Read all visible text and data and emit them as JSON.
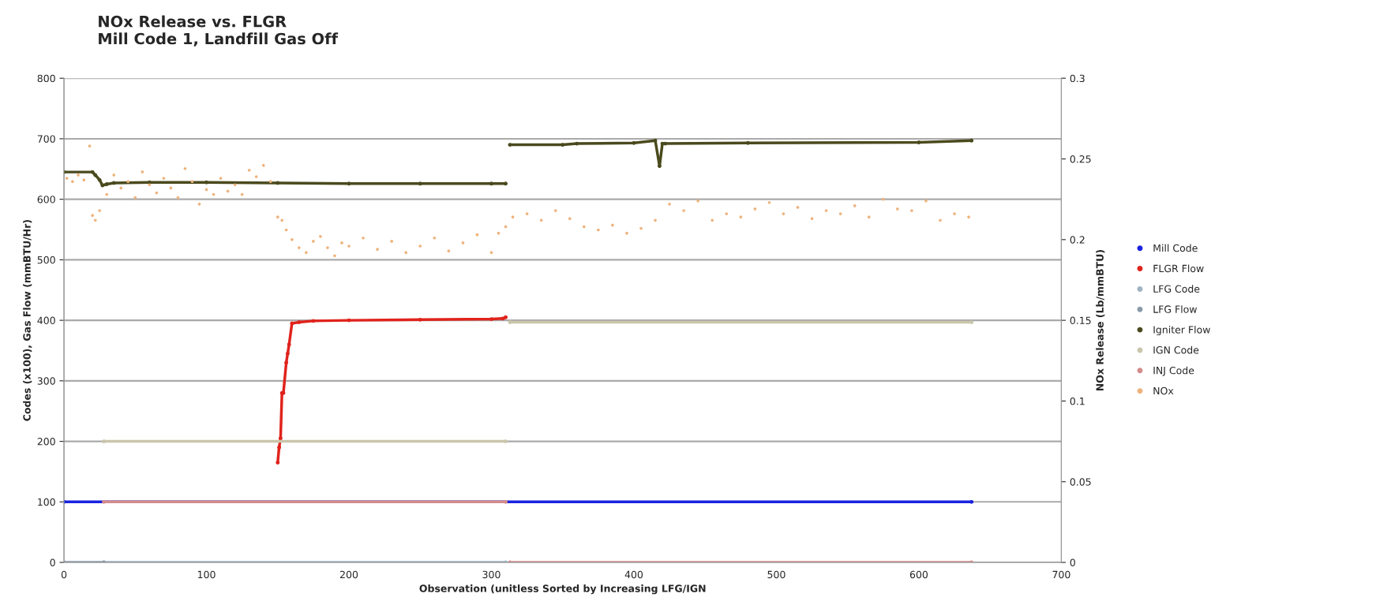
{
  "chart_data": {
    "type": "scatter",
    "title": "NOx Release vs. FLGR\nMill Code 1, Landfill Gas Off",
    "xlabel": "Observation (unitless Sorted by Increasing LFG/IGN",
    "ylabel": "Codes (x100), Gas Flow (mmBTU/Hr)",
    "y2label": "NOx Release (Lb/mmBTU)",
    "xlim": [
      0,
      700
    ],
    "xticks": [
      0,
      100,
      200,
      300,
      400,
      500,
      600,
      700
    ],
    "ylim": [
      0,
      800
    ],
    "yticks": [
      0,
      100,
      200,
      300,
      400,
      500,
      600,
      700,
      800
    ],
    "y2lim": [
      0,
      0.3
    ],
    "y2ticks": [
      0,
      0.05,
      0.1,
      0.15,
      0.2,
      0.25,
      0.3
    ],
    "grid": "y",
    "legend": "right",
    "marker": "circle",
    "series": [
      {
        "name": "Mill Code",
        "type": "line",
        "color": "#1a22e0",
        "x": [
          0,
          637
        ],
        "values": [
          100,
          100
        ]
      },
      {
        "name": "FLGR Flow",
        "type": "line",
        "color": "#e0231c",
        "x": [
          150,
          151,
          152,
          153,
          154,
          156,
          157,
          158,
          160,
          165,
          175,
          200,
          250,
          300,
          308,
          310
        ],
        "values": [
          165,
          190,
          205,
          280,
          280,
          330,
          345,
          360,
          395,
          397,
          399,
          400,
          401,
          402,
          403,
          405
        ]
      },
      {
        "name": "LFG Code",
        "type": "line",
        "color": "#9fb3c4",
        "x": [
          28,
          310
        ],
        "values": [
          0,
          0
        ]
      },
      {
        "name": "LFG Flow",
        "type": "line",
        "color": "#8a9aa8",
        "x": [
          0,
          28
        ],
        "values": [
          0,
          0
        ]
      },
      {
        "name": "Igniter Flow",
        "type": "line",
        "color": "#4a4a1e",
        "x": [
          0,
          20,
          22,
          25,
          27,
          30,
          35,
          60,
          100,
          150,
          200,
          250,
          300,
          310,
          null,
          313,
          350,
          360,
          400,
          415,
          418,
          420,
          422,
          480,
          600,
          637
        ],
        "values": [
          645,
          645,
          640,
          632,
          623,
          625,
          627,
          628,
          628,
          627,
          626,
          626,
          626,
          626,
          null,
          690,
          690,
          692,
          693,
          697,
          655,
          692,
          692,
          693,
          694,
          697
        ]
      },
      {
        "name": "IGN Code",
        "type": "line",
        "color": "#c9c6ab",
        "x": [
          28,
          310,
          null,
          313,
          637
        ],
        "values": [
          200,
          200,
          null,
          397,
          397
        ]
      },
      {
        "name": "INJ Code",
        "type": "line",
        "color": "#d48c8c",
        "x": [
          28,
          310,
          null,
          313,
          637
        ],
        "values": [
          100,
          100,
          null,
          0,
          0
        ]
      },
      {
        "name": "NOx",
        "axis": "y2",
        "color": "#eeb27c",
        "x": [
          2,
          6,
          10,
          14,
          18,
          20,
          22,
          25,
          30,
          35,
          40,
          45,
          50,
          55,
          60,
          65,
          70,
          75,
          80,
          85,
          90,
          95,
          100,
          105,
          110,
          115,
          120,
          125,
          130,
          135,
          140,
          145,
          150,
          153,
          156,
          160,
          165,
          170,
          175,
          180,
          185,
          190,
          195,
          200,
          210,
          220,
          230,
          240,
          250,
          260,
          270,
          280,
          290,
          300,
          305,
          310,
          315,
          325,
          335,
          345,
          355,
          365,
          375,
          385,
          395,
          405,
          415,
          425,
          435,
          445,
          455,
          465,
          475,
          485,
          495,
          505,
          515,
          525,
          535,
          545,
          555,
          565,
          575,
          585,
          595,
          605,
          615,
          625,
          635
        ],
        "values": [
          0.238,
          0.236,
          0.24,
          0.237,
          0.258,
          0.215,
          0.212,
          0.218,
          0.228,
          0.24,
          0.232,
          0.236,
          0.226,
          0.242,
          0.234,
          0.229,
          0.238,
          0.232,
          0.226,
          0.244,
          0.236,
          0.222,
          0.231,
          0.228,
          0.238,
          0.23,
          0.234,
          0.228,
          0.243,
          0.239,
          0.246,
          0.236,
          0.214,
          0.212,
          0.206,
          0.2,
          0.195,
          0.192,
          0.199,
          0.202,
          0.195,
          0.19,
          0.198,
          0.196,
          0.201,
          0.194,
          0.199,
          0.192,
          0.196,
          0.201,
          0.193,
          0.198,
          0.203,
          0.192,
          0.204,
          0.208,
          0.214,
          0.216,
          0.212,
          0.218,
          0.213,
          0.208,
          0.206,
          0.209,
          0.204,
          0.207,
          0.212,
          0.222,
          0.218,
          0.224,
          0.212,
          0.216,
          0.214,
          0.219,
          0.223,
          0.216,
          0.22,
          0.213,
          0.218,
          0.216,
          0.221,
          0.214,
          0.225,
          0.219,
          0.218,
          0.224,
          0.212,
          0.216,
          0.214
        ]
      }
    ]
  }
}
